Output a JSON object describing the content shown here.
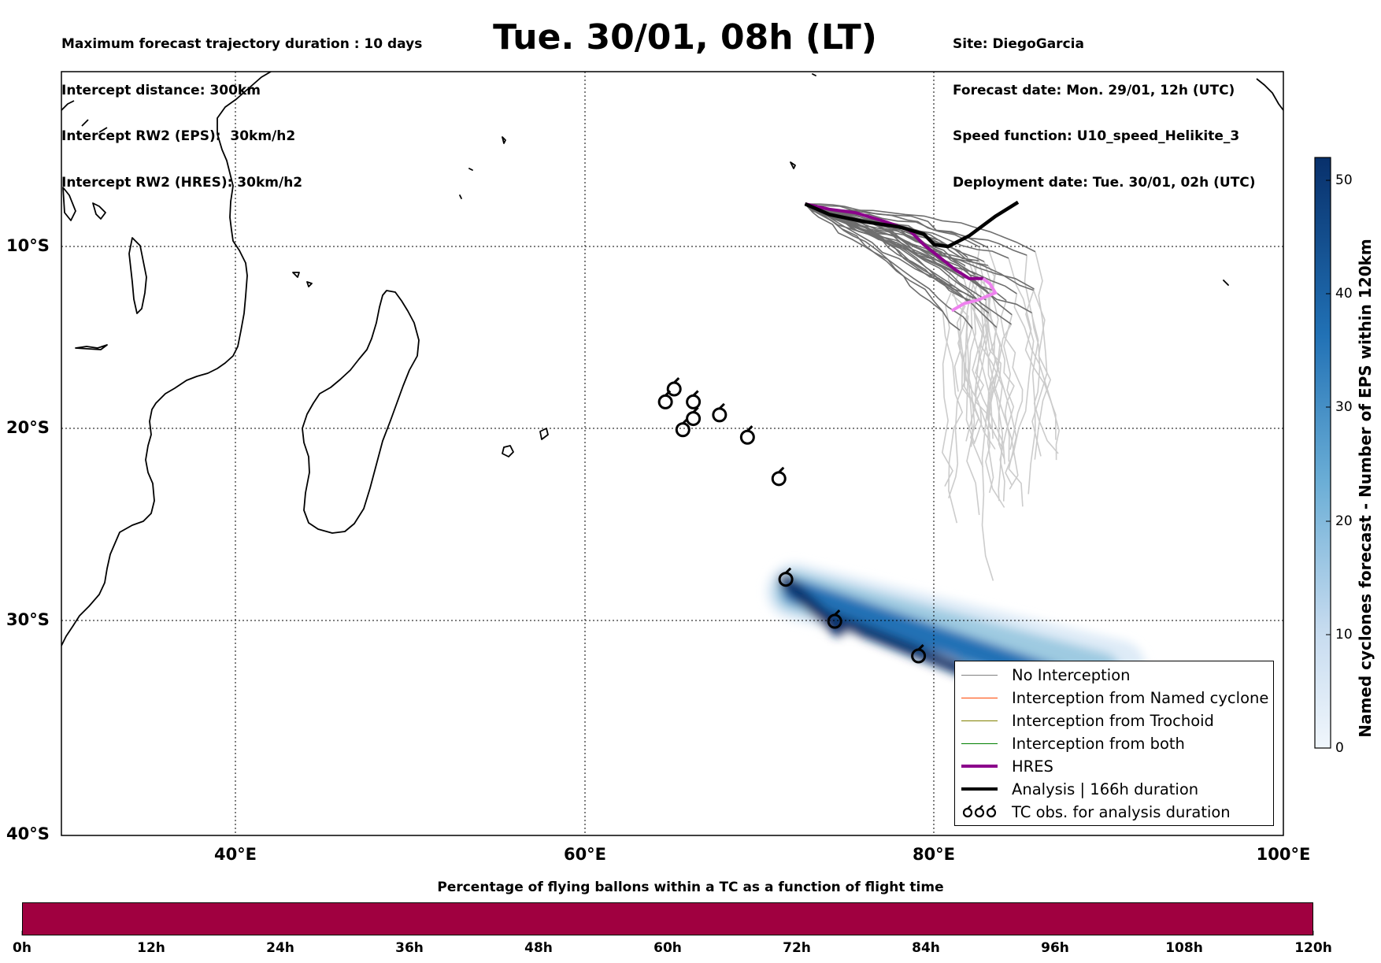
{
  "header_left": {
    "line1": "Maximum forecast trajectory duration : 10 days",
    "line2": "Intercept distance: 300km",
    "line3": "Intercept RW2 (EPS):  30km/h2",
    "line4": "Intercept RW2 (HRES): 30km/h2"
  },
  "title": "Tue. 30/01, 08h (LT)",
  "header_right": {
    "line1": "Site: DiegoGarcia",
    "line2": "Forecast date: Mon. 29/01, 12h (UTC)",
    "line3": "Speed function: U10_speed_Helikite_3",
    "line4": "Deployment date: Tue. 30/01, 02h (UTC)"
  },
  "map": {
    "lat_labels": [
      "10°S",
      "20°S",
      "30°S",
      "40°S"
    ],
    "lon_labels": [
      "40°E",
      "60°E",
      "80°E",
      "100°E"
    ],
    "extent": {
      "lon_min": 30,
      "lon_max": 100,
      "lat_min": -40,
      "lat_max": -0.5
    }
  },
  "legend": {
    "items": [
      {
        "label": "No Interception",
        "color": "#808080"
      },
      {
        "label": "Interception from Named cyclone",
        "color": "#ff4500"
      },
      {
        "label": "Interception from Trochoid",
        "color": "#808000"
      },
      {
        "label": "Interception from both",
        "color": "#008000"
      },
      {
        "label": "HRES",
        "color": "#8b008b"
      },
      {
        "label": "Analysis | 166h duration",
        "color": "#000000"
      },
      {
        "label": "TC obs. for analysis duration",
        "icon": "cyclone-symbol-icon"
      }
    ]
  },
  "right_colorbar": {
    "title": "Named cyclones forecast - Number of EPS within 120km",
    "ticks": [
      "0",
      "10",
      "20",
      "30",
      "40",
      "50"
    ],
    "min": 0,
    "max": 52,
    "colors": [
      "#deebf7",
      "#c6dbef",
      "#9ecae1",
      "#6baed6",
      "#4292c6",
      "#2171b5",
      "#08519c",
      "#08306b"
    ]
  },
  "bottom_colorbar": {
    "title": "Percentage of flying ballons within a TC as a function of flight time",
    "ticks": [
      "0h",
      "12h",
      "24h",
      "36h",
      "48h",
      "60h",
      "72h",
      "84h",
      "96h",
      "108h",
      "120h"
    ],
    "fill_color": "#a00040"
  },
  "tracks": {
    "analysis": [
      [
        72.6,
        -7.6
      ],
      [
        74,
        -8.2
      ],
      [
        76,
        -8.6
      ],
      [
        78,
        -8.9
      ],
      [
        79.4,
        -9.3
      ],
      [
        80,
        -9.9
      ],
      [
        80.8,
        -10
      ],
      [
        82,
        -9.4
      ],
      [
        83.5,
        -8.3
      ],
      [
        84.8,
        -7.5
      ]
    ],
    "hres": [
      [
        72.6,
        -7.6
      ],
      [
        74,
        -7.9
      ],
      [
        75.5,
        -8.1
      ],
      [
        77.2,
        -8.6
      ],
      [
        78.6,
        -9.1
      ],
      [
        79.4,
        -9.9
      ],
      [
        80.3,
        -10.6
      ],
      [
        81.2,
        -11.3
      ],
      [
        82,
        -11.8
      ],
      [
        82.8,
        -11.8
      ]
    ],
    "hres_late": [
      [
        82.8,
        -11.8
      ],
      [
        83.2,
        -12.1
      ],
      [
        83.5,
        -12.6
      ],
      [
        82.5,
        -13.0
      ],
      [
        81.7,
        -13.2
      ],
      [
        81,
        -13.6
      ]
    ]
  },
  "tc_observations": [
    [
      65.1,
      -17.9
    ],
    [
      64.6,
      -18.6
    ],
    [
      66.2,
      -18.6
    ],
    [
      66.2,
      -19.5
    ],
    [
      65.6,
      -20.1
    ],
    [
      67.7,
      -19.3
    ],
    [
      69.3,
      -20.5
    ],
    [
      71.1,
      -22.7
    ],
    [
      71.5,
      -27.9
    ],
    [
      74.3,
      -30.0
    ],
    [
      79.1,
      -31.7
    ]
  ]
}
